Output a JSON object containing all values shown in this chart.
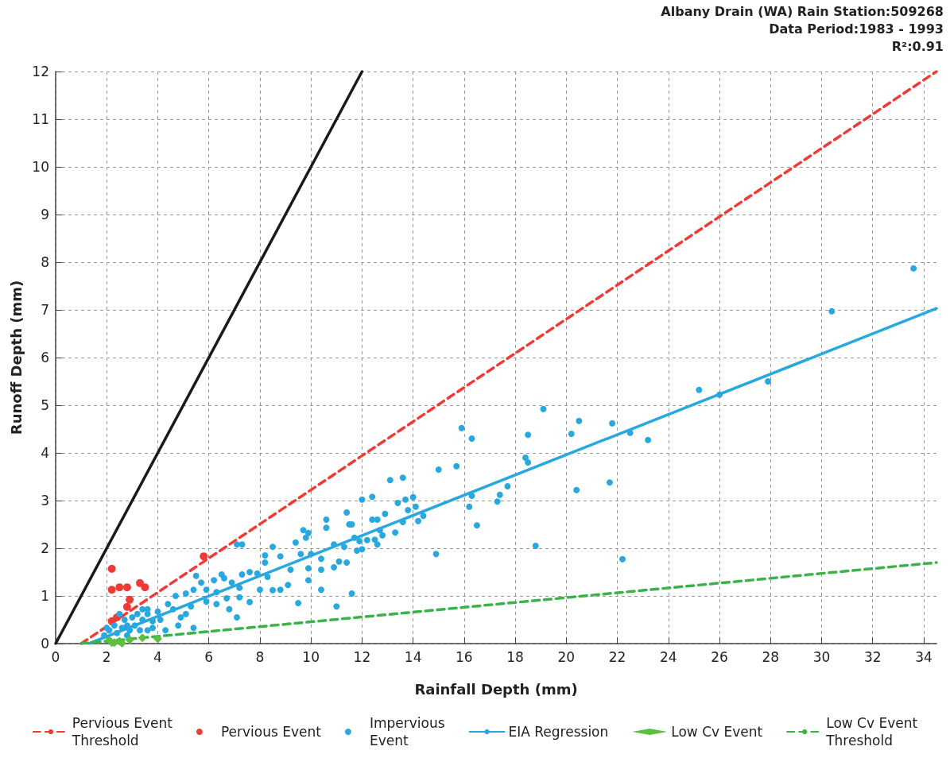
{
  "chart_data": {
    "type": "scatter",
    "title": "Albany Drain (WA) Rain Station:509268",
    "subtitle": "Data Period:1983 - 1993",
    "annotations": [
      "R²:0.91"
    ],
    "xlabel": "Rainfall Depth (mm)",
    "ylabel": "Runoff Depth (mm)",
    "xlim": [
      0,
      34.5
    ],
    "xticks": [
      0,
      2,
      4,
      6,
      8,
      10,
      12,
      14,
      16,
      18,
      20,
      22,
      24,
      26,
      28,
      30,
      32,
      34
    ],
    "ylim": [
      0,
      12
    ],
    "yticks": [
      0,
      1,
      2,
      3,
      4,
      5,
      6,
      7,
      8,
      9,
      10,
      11,
      12
    ],
    "grid": true,
    "legend": "bottom",
    "series": [
      {
        "type": "line",
        "color": "#1a1a1a",
        "line_style": "solid",
        "marker": "none",
        "x": [
          0,
          12
        ],
        "values": [
          0,
          12
        ]
      },
      {
        "type": "line",
        "name": "Pervious Event Threshold",
        "color": "#ef3b36",
        "line_style": "dashed",
        "marker": "none",
        "x": [
          1,
          34.5
        ],
        "values": [
          0,
          12
        ]
      },
      {
        "name": "Pervious Event",
        "color": "#ef3b36",
        "marker": "circle",
        "x": [
          2.2,
          2.2,
          2.5,
          2.8,
          3.3,
          3.5,
          2.9,
          2.8,
          2.2,
          2.4,
          5.8
        ],
        "values": [
          1.57,
          1.13,
          1.18,
          1.18,
          1.27,
          1.18,
          0.92,
          0.77,
          0.47,
          0.55,
          1.83
        ]
      },
      {
        "name": "Impervious Event",
        "color": "#29a8e0",
        "marker": "circle",
        "x": [
          33.6,
          30.4,
          27.9,
          25.2,
          26.0,
          19.1,
          20.5,
          20.2,
          21.8,
          22.5,
          23.2,
          18.5,
          18.4,
          18.5,
          21.7,
          20.4,
          18.8,
          22.2,
          15.9,
          16.3,
          15.7,
          15.0,
          17.7,
          17.4,
          17.3,
          16.3,
          16.2,
          16.5,
          14.9,
          13.1,
          13.6,
          12.0,
          12.4,
          13.7,
          14.0,
          13.4,
          13.8,
          14.1,
          12.9,
          12.4,
          12.6,
          14.4,
          14.2,
          13.6,
          12.7,
          12.8,
          13.3,
          11.7,
          11.9,
          12.2,
          12.5,
          12.6,
          11.8,
          12.0,
          11.6,
          11.6,
          11.4,
          11.5,
          9.7,
          9.8,
          9.9,
          10.6,
          10.6,
          10.9,
          11.3,
          9.6,
          9.4,
          8.5,
          8.8,
          8.2,
          8.2,
          7.3,
          7.1,
          9.2,
          9.9,
          10.4,
          10.9,
          11.4,
          11.0,
          9.5,
          10.4,
          9.9,
          9.1,
          8.8,
          8.5,
          8.0,
          7.9,
          7.6,
          8.3,
          7.3,
          7.2,
          7.2,
          7.1,
          7.6,
          6.5,
          6.6,
          6.2,
          5.7,
          5.9,
          5.4,
          5.5,
          5.1,
          5.9,
          6.3,
          6.7,
          6.8,
          4.7,
          4.4,
          4.6,
          5.3,
          5.4,
          5.1,
          4.8,
          4.0,
          4.1,
          3.8,
          3.6,
          3.6,
          3.4,
          3.2,
          3.1,
          2.9,
          2.7,
          2.6,
          2.4,
          2.3,
          2.1,
          2.0,
          1.9,
          2.8,
          3.3,
          3.6,
          3.8,
          3.4,
          3.0,
          2.5,
          2.8,
          4.9,
          4.3,
          6.3,
          6.9,
          11.1,
          10.4,
          10.0
        ],
        "values": [
          7.87,
          6.97,
          5.5,
          5.32,
          5.22,
          4.92,
          4.67,
          4.4,
          4.62,
          4.42,
          4.27,
          4.38,
          3.9,
          3.8,
          3.38,
          3.22,
          2.05,
          1.77,
          4.52,
          4.3,
          3.72,
          3.65,
          3.3,
          3.12,
          2.98,
          3.1,
          2.87,
          2.48,
          1.88,
          3.43,
          3.48,
          3.02,
          3.08,
          3.02,
          3.07,
          2.95,
          2.8,
          2.87,
          2.72,
          2.6,
          2.6,
          2.68,
          2.57,
          2.55,
          2.38,
          2.27,
          2.33,
          2.22,
          2.15,
          2.17,
          2.18,
          2.08,
          1.95,
          1.98,
          2.5,
          1.05,
          2.75,
          2.5,
          2.38,
          2.22,
          2.32,
          2.6,
          2.43,
          2.08,
          2.03,
          1.88,
          2.12,
          2.03,
          1.83,
          1.7,
          1.85,
          2.08,
          2.08,
          1.55,
          1.58,
          1.55,
          1.6,
          1.7,
          0.78,
          0.85,
          1.13,
          1.33,
          1.23,
          1.13,
          1.12,
          1.13,
          1.47,
          1.5,
          1.4,
          1.45,
          1.17,
          0.97,
          0.55,
          0.87,
          1.45,
          1.37,
          1.33,
          1.28,
          1.13,
          1.13,
          1.42,
          1.05,
          0.88,
          0.83,
          0.95,
          0.72,
          1.0,
          0.83,
          0.72,
          0.78,
          0.33,
          0.62,
          0.38,
          0.67,
          0.5,
          0.33,
          0.62,
          0.72,
          0.5,
          0.62,
          0.38,
          0.28,
          0.5,
          0.33,
          0.22,
          0.38,
          0.28,
          0.33,
          0.17,
          0.17,
          0.28,
          0.28,
          0.47,
          0.72,
          0.55,
          0.62,
          0.38,
          0.55,
          0.28,
          1.08,
          1.28,
          1.72,
          1.78,
          1.88
        ]
      },
      {
        "type": "line",
        "name": "EIA Regression",
        "color": "#29a8e0",
        "line_style": "solid",
        "marker": "none",
        "x": [
          1.3,
          34.5
        ],
        "values": [
          0,
          7.03
        ]
      },
      {
        "name": "Low Cv Event",
        "color": "#5cbf3f",
        "marker": "diamond",
        "x": [
          2.1,
          2.2,
          2.3,
          2.5,
          2.6,
          2.9,
          3.4,
          4.0
        ],
        "values": [
          0.07,
          0.02,
          0.02,
          0.05,
          0.01,
          0.08,
          0.12,
          0.1
        ]
      },
      {
        "type": "line",
        "name": "Low Cv Event Threshold",
        "color": "#3bb34a",
        "line_style": "dashed",
        "marker": "none",
        "x": [
          1,
          34.5
        ],
        "values": [
          0,
          1.7
        ]
      }
    ]
  }
}
